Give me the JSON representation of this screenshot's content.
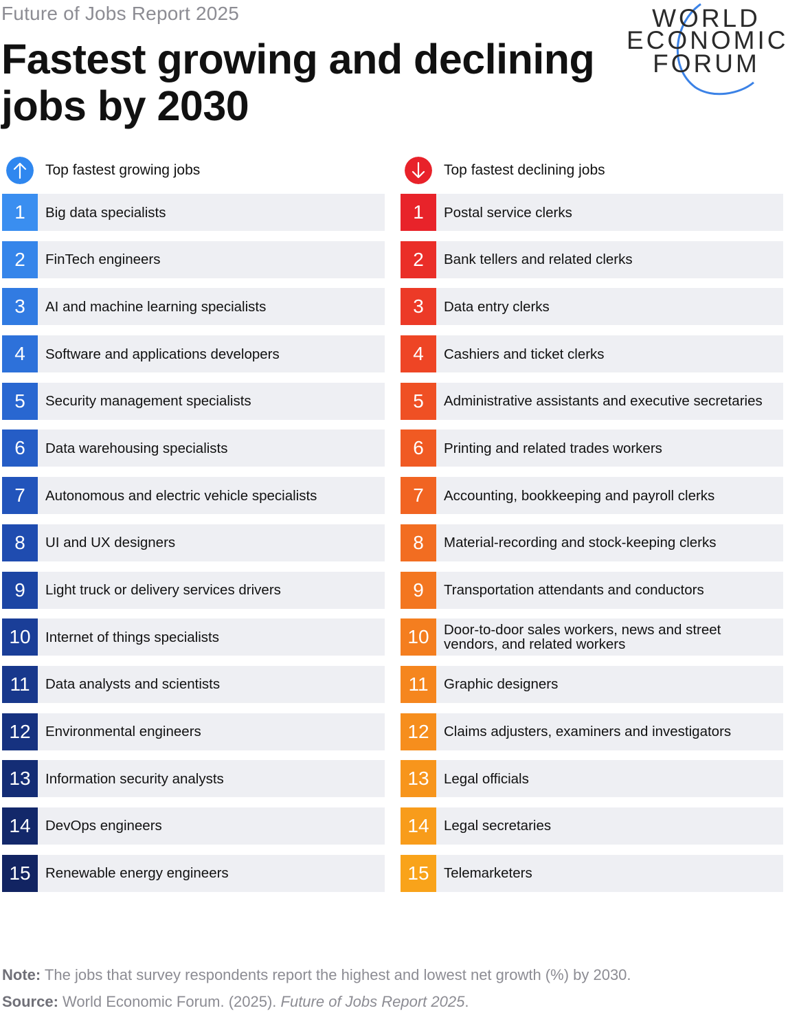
{
  "header": {
    "kicker": "Future of Jobs Report 2025",
    "title": "Fastest growing and declining jobs by 2030"
  },
  "logo": {
    "lines": [
      "WORLD",
      "ECONOMIC",
      "FORUM"
    ],
    "color": "#3b82e6"
  },
  "growing": {
    "heading": "Top fastest growing jobs",
    "icon": "arrow-up-icon",
    "accent": "#2f87ef",
    "items": [
      {
        "rank": "1",
        "label": "Big data specialists",
        "color": "#3a8ef0"
      },
      {
        "rank": "2",
        "label": "FinTech engineers",
        "color": "#3585ea"
      },
      {
        "rank": "3",
        "label": "AI and machine learning specialists",
        "color": "#317be2"
      },
      {
        "rank": "4",
        "label": "Software and applications developers",
        "color": "#2d71da"
      },
      {
        "rank": "5",
        "label": "Security management specialists",
        "color": "#2967d1"
      },
      {
        "rank": "6",
        "label": "Data warehousing specialists",
        "color": "#255dc6"
      },
      {
        "rank": "7",
        "label": "Autonomous and electric vehicle specialists",
        "color": "#2254bb"
      },
      {
        "rank": "8",
        "label": "UI and UX designers",
        "color": "#1f4cb0"
      },
      {
        "rank": "9",
        "label": "Light truck or delivery services drivers",
        "color": "#1c45a4"
      },
      {
        "rank": "10",
        "label": "Internet of things specialists",
        "color": "#1a3e98"
      },
      {
        "rank": "11",
        "label": "Data analysts and scientists",
        "color": "#18388c"
      },
      {
        "rank": "12",
        "label": "Environmental engineers",
        "color": "#163280"
      },
      {
        "rank": "13",
        "label": "Information security analysts",
        "color": "#142d75"
      },
      {
        "rank": "14",
        "label": "DevOps engineers",
        "color": "#13286a"
      },
      {
        "rank": "15",
        "label": "Renewable energy engineers",
        "color": "#122462"
      }
    ]
  },
  "declining": {
    "heading": "Top fastest declining jobs",
    "icon": "arrow-down-icon",
    "accent": "#e8222a",
    "items": [
      {
        "rank": "1",
        "label": "Postal service clerks",
        "color": "#e8232a"
      },
      {
        "rank": "2",
        "label": "Bank tellers and related clerks",
        "color": "#ea2e28"
      },
      {
        "rank": "3",
        "label": "Data entry clerks",
        "color": "#ec3a27"
      },
      {
        "rank": "4",
        "label": "Cashiers and ticket clerks",
        "color": "#ee4525"
      },
      {
        "rank": "5",
        "label": "Administrative assistants and executive secretaries",
        "color": "#ef5024"
      },
      {
        "rank": "6",
        "label": "Printing and related trades workers",
        "color": "#f05a23"
      },
      {
        "rank": "7",
        "label": "Accounting, bookkeeping and payroll clerks",
        "color": "#f16422"
      },
      {
        "rank": "8",
        "label": "Material-recording and stock-keeping clerks",
        "color": "#f26d21"
      },
      {
        "rank": "9",
        "label": "Transportation attendants and conductors",
        "color": "#f37620"
      },
      {
        "rank": "10",
        "label": "Door-to-door sales workers, news and street vendors, and related workers",
        "color": "#f47e1f"
      },
      {
        "rank": "11",
        "label": "Graphic designers",
        "color": "#f5861e"
      },
      {
        "rank": "12",
        "label": "Claims adjusters, examiners and investigators",
        "color": "#f68e1d"
      },
      {
        "rank": "13",
        "label": "Legal officials",
        "color": "#f7951c"
      },
      {
        "rank": "14",
        "label": "Legal secretaries",
        "color": "#f89c1b"
      },
      {
        "rank": "15",
        "label": "Telemarketers",
        "color": "#f9a31a"
      }
    ]
  },
  "footer": {
    "note_label": "Note:",
    "note_text": " The jobs that survey respondents report the highest and lowest net growth (%) by 2030.",
    "source_label": "Source:",
    "source_text": " World Economic Forum. (2025). ",
    "source_title": "Future of Jobs Report 2025",
    "source_end": "."
  }
}
